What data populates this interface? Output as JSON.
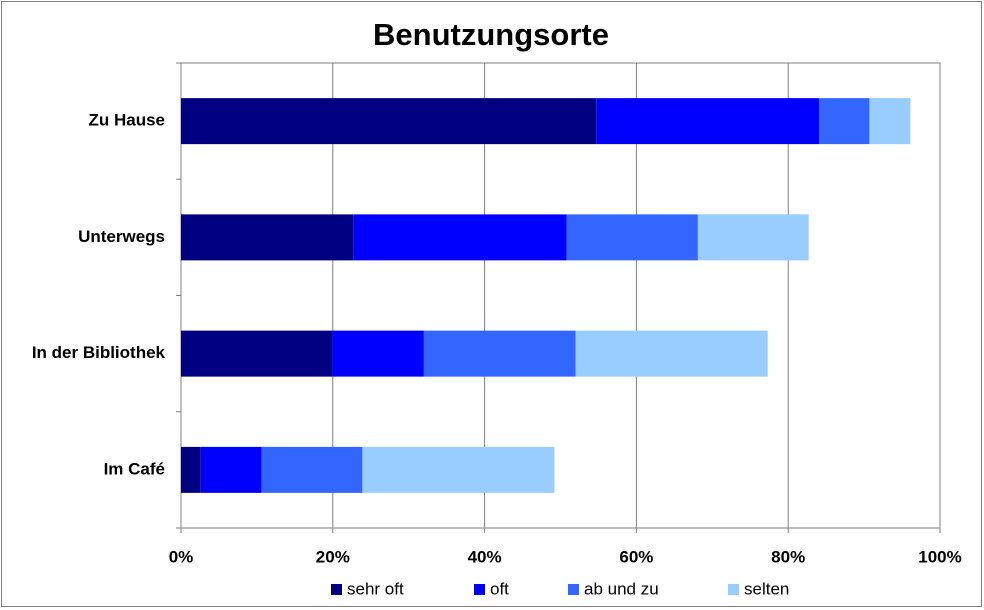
{
  "chart_data": {
    "type": "stacked-bar-horizontal",
    "title": "Benutzungsorte",
    "categories": [
      "Zu Hause",
      "Unterwegs",
      "In der Bibliothek",
      "Im Café"
    ],
    "series": [
      {
        "name": "sehr oft",
        "color": "#000080",
        "values": [
          54.7,
          22.7,
          19.9,
          2.6
        ]
      },
      {
        "name": "oft",
        "color": "#0000ff",
        "values": [
          29.4,
          28.1,
          12.1,
          8.0
        ]
      },
      {
        "name": "ab und zu",
        "color": "#3366ff",
        "values": [
          6.6,
          17.3,
          20.0,
          13.3
        ]
      },
      {
        "name": "selten",
        "color": "#99ccff",
        "values": [
          5.4,
          14.6,
          25.3,
          25.3
        ]
      }
    ],
    "xlim": [
      0,
      100
    ],
    "xticks": [
      {
        "value": 0,
        "label": "0%"
      },
      {
        "value": 20,
        "label": "20%"
      },
      {
        "value": 40,
        "label": "40%"
      },
      {
        "value": 60,
        "label": "60%"
      },
      {
        "value": 80,
        "label": "80%"
      },
      {
        "value": 100,
        "label": "100%"
      }
    ],
    "grid": true,
    "legend": "bottom"
  }
}
